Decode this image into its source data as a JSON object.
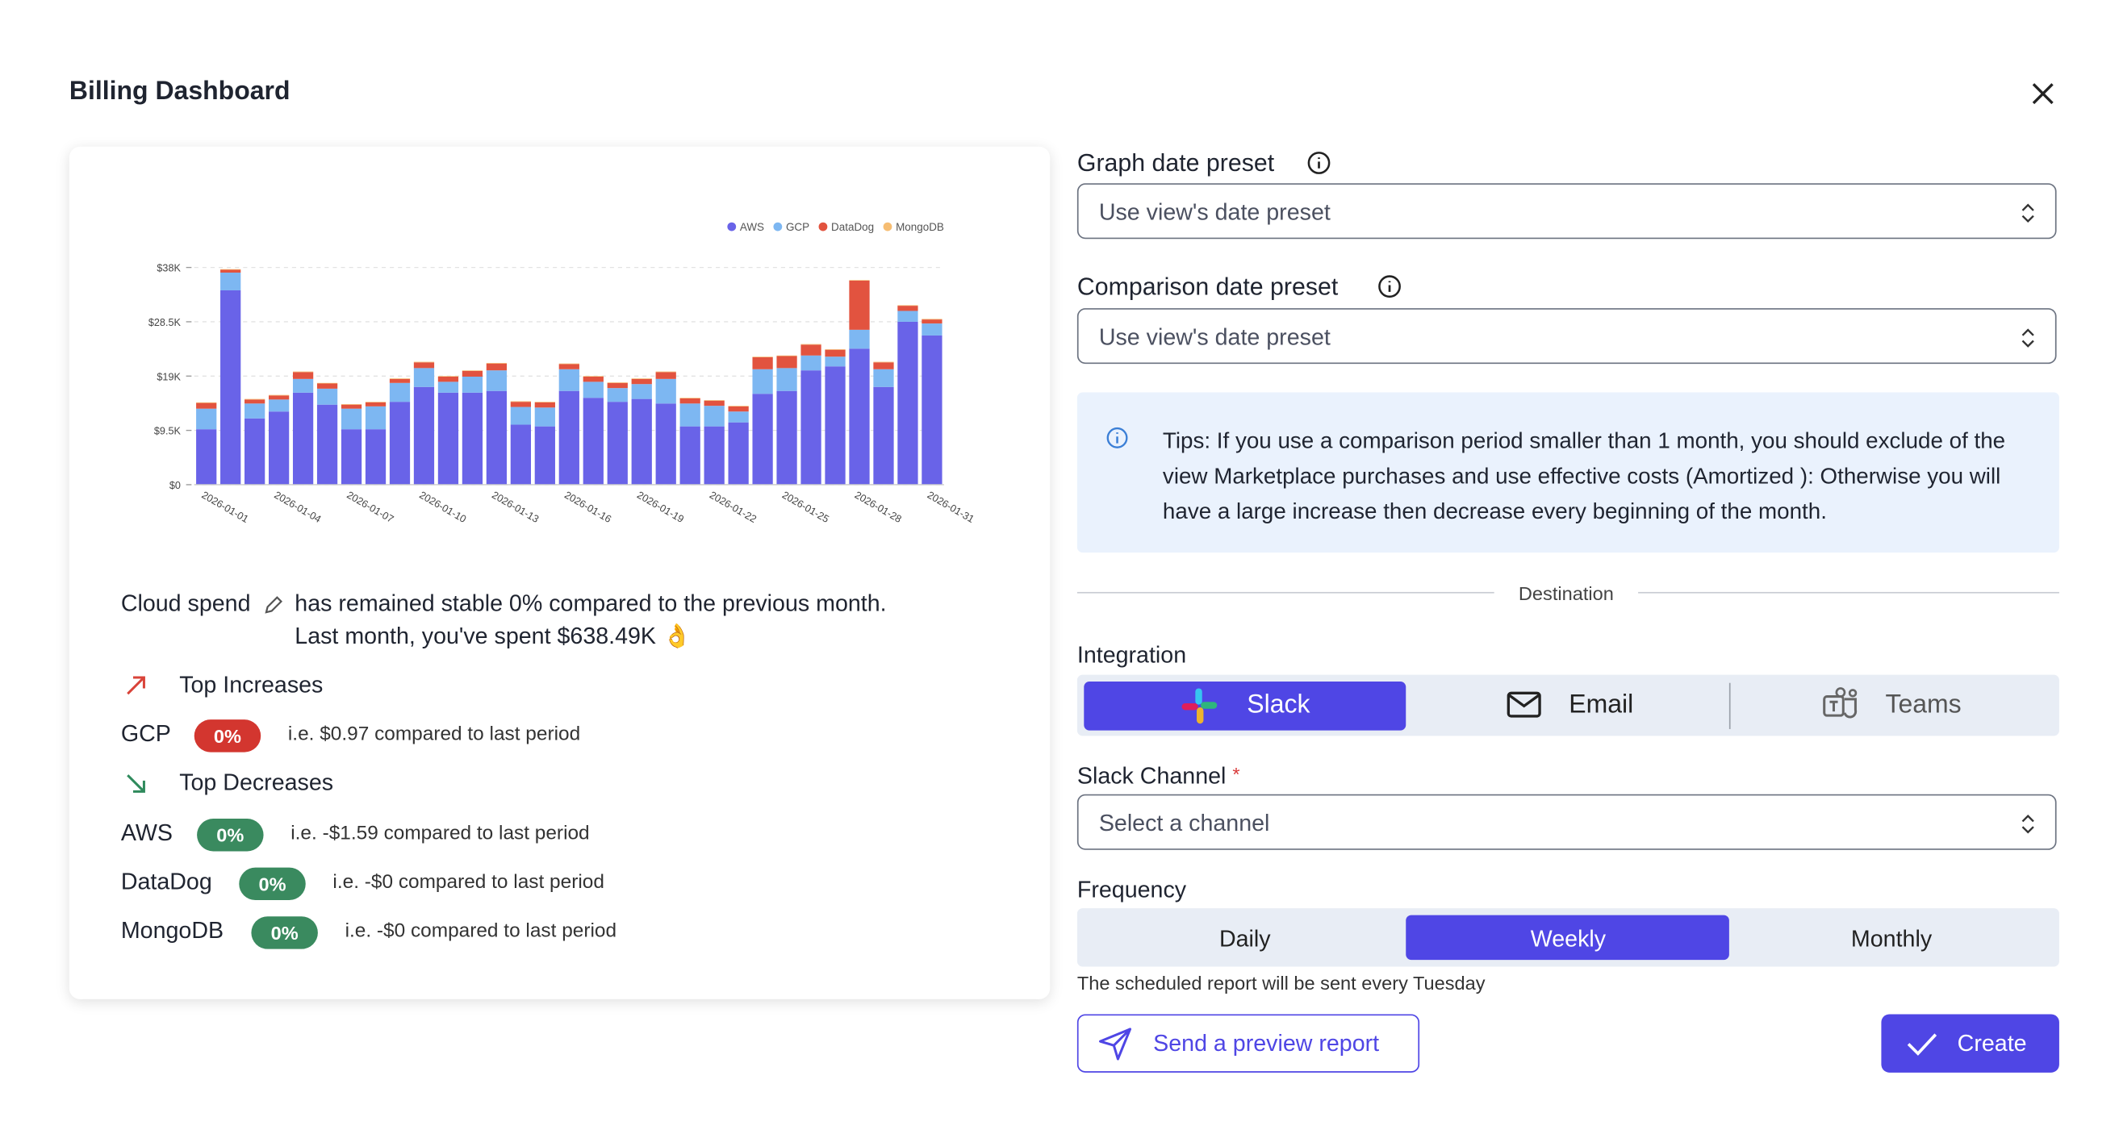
{
  "header": {
    "title": "Billing Dashboard"
  },
  "chart_data": {
    "type": "stacked-bar",
    "categories": [
      "2026-01-01",
      null,
      null,
      "2026-01-04",
      null,
      null,
      "2026-01-07",
      null,
      null,
      "2026-01-10",
      null,
      null,
      "2026-01-13",
      null,
      null,
      "2026-01-16",
      null,
      null,
      "2026-01-19",
      null,
      null,
      "2026-01-22",
      null,
      null,
      "2026-01-25",
      null,
      null,
      "2026-01-28",
      null,
      null,
      "2026-01-31"
    ],
    "series": [
      {
        "name": "AWS",
        "color": "#6963e8",
        "values": [
          9700,
          34000,
          11600,
          12800,
          16100,
          14000,
          9700,
          9700,
          14500,
          17100,
          16100,
          16100,
          16400,
          10500,
          10200,
          16400,
          15200,
          14500,
          15000,
          14200,
          10200,
          10200,
          10900,
          15900,
          16400,
          20000,
          20700,
          23800,
          17100,
          28500,
          26100
        ]
      },
      {
        "name": "GCP",
        "color": "#7db7f2",
        "values": [
          3600,
          3100,
          2600,
          2100,
          2400,
          2800,
          3600,
          4000,
          3300,
          3300,
          1900,
          2800,
          3600,
          3100,
          3300,
          3800,
          2800,
          2400,
          2600,
          4300,
          4000,
          3600,
          1900,
          4300,
          4000,
          2600,
          1700,
          3300,
          3100,
          1900,
          2100
        ]
      },
      {
        "name": "DataDog",
        "color": "#e2533f",
        "values": [
          1000,
          500,
          700,
          700,
          1200,
          900,
          700,
          700,
          700,
          1000,
          900,
          1000,
          1200,
          900,
          900,
          900,
          900,
          900,
          900,
          1200,
          900,
          900,
          900,
          2100,
          2100,
          1900,
          1200,
          8600,
          1200,
          900,
          700
        ]
      },
      {
        "name": "MongoDB",
        "color": "#f6bd72",
        "values": [
          100,
          100,
          100,
          100,
          100,
          100,
          100,
          100,
          100,
          100,
          100,
          100,
          100,
          100,
          100,
          100,
          100,
          100,
          100,
          100,
          100,
          100,
          100,
          100,
          100,
          100,
          100,
          100,
          100,
          100,
          100
        ]
      }
    ],
    "ylim": [
      0,
      38000
    ],
    "yticks": [
      {
        "value": 0,
        "label": "$0"
      },
      {
        "value": 9500,
        "label": "$9.5K"
      },
      {
        "value": 19000,
        "label": "$19K"
      },
      {
        "value": 28500,
        "label": "$28.5K"
      },
      {
        "value": 38000,
        "label": "$38K"
      }
    ],
    "grid": true,
    "legend": "top-right"
  },
  "summary": {
    "metric": "Cloud spend",
    "line1": "has remained stable 0% compared to the previous month.",
    "line2": "Last month, you've spent $638.49K 👌",
    "increases_title": "Top Increases",
    "increases": [
      {
        "name": "GCP",
        "badge": "0%",
        "note": "i.e. $0.97 compared to last period"
      }
    ],
    "decreases_title": "Top Decreases",
    "decreases": [
      {
        "name": "AWS",
        "badge": "0%",
        "note": "i.e. -$1.59 compared to last period"
      },
      {
        "name": "DataDog",
        "badge": "0%",
        "note": "i.e. -$0 compared to last period"
      },
      {
        "name": "MongoDB",
        "badge": "0%",
        "note": "i.e. -$0 compared to last period"
      }
    ]
  },
  "form": {
    "graph_label": "Graph date preset",
    "graph_value": "Use view's date preset",
    "comparison_label": "Comparison date preset",
    "comparison_value": "Use view's date preset",
    "tips": "Tips: If you use a comparison period smaller than 1 month, you should exclude of the view Marketplace purchases and use effective costs (Amortized ): Otherwise you will have a large increase then decrease every beginning of the month.",
    "destination": "Destination",
    "integration_label": "Integration",
    "integrations": [
      "Slack",
      "Email",
      "Teams"
    ],
    "channel_label": "Slack Channel",
    "required": "*",
    "channel_placeholder": "Select a channel",
    "frequency_label": "Frequency",
    "frequencies": [
      "Daily",
      "Weekly",
      "Monthly"
    ],
    "frequency_note": "The scheduled report will be sent every Tuesday",
    "preview_button": "Send a preview report",
    "create_button": "Create"
  }
}
